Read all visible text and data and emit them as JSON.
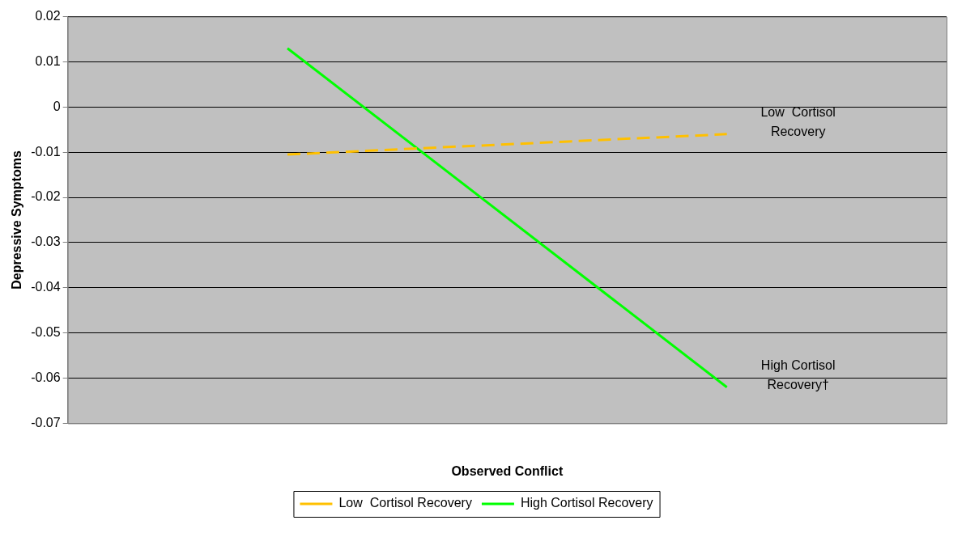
{
  "chart_data": {
    "type": "line",
    "xlabel": "Observed Conflict",
    "ylabel": "Depressive Symptoms",
    "categories": [
      null,
      null
    ],
    "series": [
      {
        "name": "Low  Cortisol Recovery",
        "color": "#ffc000",
        "values": [
          -0.0105,
          -0.006
        ],
        "line_style": "dashed"
      },
      {
        "name": "High Cortisol Recovery",
        "color": "#00ff00",
        "values": [
          0.013,
          -0.062
        ],
        "line_style": "solid"
      }
    ],
    "ylim": [
      -0.07,
      0.02
    ],
    "yticks": [
      -0.07,
      -0.06,
      -0.05,
      -0.04,
      -0.03,
      -0.02,
      -0.01,
      0,
      0.01,
      0.02
    ],
    "grid": "y",
    "legend": "bottom",
    "marker": "none",
    "annotations": [
      "Low  Cortisol Recovery",
      "High Cortisol Recovery†"
    ]
  }
}
